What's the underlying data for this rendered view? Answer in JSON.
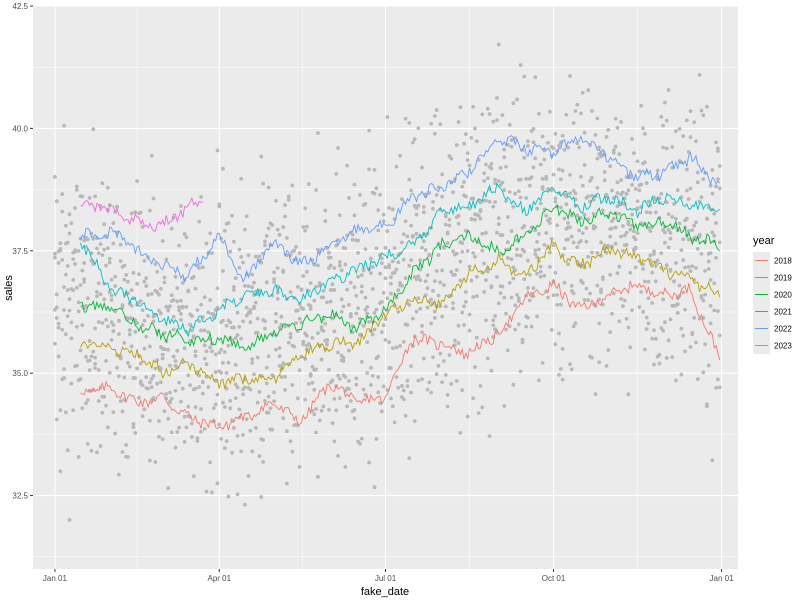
{
  "chart_data": {
    "type": "line",
    "title": "",
    "xlabel": "fake_date",
    "ylabel": "sales",
    "xlim": [
      "2021-12-20",
      "2023-01-10"
    ],
    "ylim": [
      31.0,
      42.5
    ],
    "grid": true,
    "legend_position": "right",
    "x_ticks": [
      {
        "value": "2022-01-01",
        "label": "Jan 01"
      },
      {
        "value": "2022-04-01",
        "label": "Apr 01"
      },
      {
        "value": "2022-07-01",
        "label": "Jul 01"
      },
      {
        "value": "2022-10-01",
        "label": "Oct 01"
      },
      {
        "value": "2023-01-01",
        "label": "Jan 01"
      }
    ],
    "y_ticks": [
      {
        "value": 32.5,
        "label": "32.5"
      },
      {
        "value": 35.0,
        "label": "35.0"
      },
      {
        "value": 37.5,
        "label": "37.5"
      },
      {
        "value": 40.0,
        "label": "40.0"
      },
      {
        "value": 42.5,
        "label": "42.5"
      }
    ],
    "legend": {
      "title": "year",
      "entries": [
        "2018",
        "2019",
        "2020",
        "2021",
        "2022",
        "2023"
      ]
    },
    "colors": {
      "2018": "#F8766D",
      "2019": "#B79F00",
      "2020": "#00BA38",
      "2021": "#00BFC4",
      "2022": "#619CFF",
      "2023": "#F564E3",
      "points": "#b8b8b8",
      "panel": "#ebebeb",
      "grid": "#ffffff"
    },
    "series": [
      {
        "name": "2018",
        "x": [
          "2022-01-15",
          "2022-02-01",
          "2022-02-15",
          "2022-03-01",
          "2022-03-15",
          "2022-04-01",
          "2022-04-15",
          "2022-05-01",
          "2022-05-15",
          "2022-06-01",
          "2022-06-15",
          "2022-07-01",
          "2022-07-15",
          "2022-08-01",
          "2022-08-15",
          "2022-09-01",
          "2022-09-15",
          "2022-10-01",
          "2022-10-15",
          "2022-11-01",
          "2022-11-15",
          "2022-12-01",
          "2022-12-15",
          "2022-12-31"
        ],
        "y": [
          34.6,
          34.7,
          34.4,
          34.5,
          34.1,
          33.9,
          34.1,
          34.4,
          34.0,
          34.8,
          34.4,
          34.5,
          35.7,
          35.6,
          35.4,
          35.8,
          36.5,
          36.8,
          36.3,
          36.6,
          36.8,
          36.6,
          36.7,
          35.3
        ]
      },
      {
        "name": "2019",
        "x": [
          "2022-01-15",
          "2022-02-01",
          "2022-02-15",
          "2022-03-01",
          "2022-03-15",
          "2022-04-01",
          "2022-04-15",
          "2022-05-01",
          "2022-05-15",
          "2022-06-01",
          "2022-06-15",
          "2022-07-01",
          "2022-07-15",
          "2022-08-01",
          "2022-08-15",
          "2022-09-01",
          "2022-09-15",
          "2022-10-01",
          "2022-10-15",
          "2022-11-01",
          "2022-11-15",
          "2022-12-01",
          "2022-12-15",
          "2022-12-31"
        ],
        "y": [
          35.6,
          35.5,
          35.4,
          35.0,
          35.2,
          34.8,
          34.9,
          34.9,
          35.4,
          35.6,
          35.6,
          36.2,
          36.5,
          36.4,
          37.0,
          37.3,
          37.0,
          37.6,
          37.2,
          37.5,
          37.4,
          37.1,
          36.9,
          36.6
        ]
      },
      {
        "name": "2020",
        "x": [
          "2022-01-15",
          "2022-02-01",
          "2022-02-15",
          "2022-03-01",
          "2022-03-15",
          "2022-04-01",
          "2022-04-15",
          "2022-05-01",
          "2022-05-15",
          "2022-06-01",
          "2022-06-15",
          "2022-07-01",
          "2022-07-15",
          "2022-08-01",
          "2022-08-15",
          "2022-09-01",
          "2022-09-15",
          "2022-10-01",
          "2022-10-15",
          "2022-11-01",
          "2022-11-15",
          "2022-12-01",
          "2022-12-15",
          "2022-12-31"
        ],
        "y": [
          36.4,
          36.3,
          36.0,
          35.8,
          35.7,
          35.7,
          35.5,
          35.8,
          36.0,
          36.2,
          35.9,
          36.3,
          37.0,
          37.6,
          37.8,
          37.5,
          37.8,
          38.4,
          38.1,
          38.3,
          38.0,
          38.1,
          37.8,
          37.6
        ]
      },
      {
        "name": "2021",
        "x": [
          "2022-01-15",
          "2022-02-01",
          "2022-02-15",
          "2022-03-01",
          "2022-03-15",
          "2022-04-01",
          "2022-04-15",
          "2022-05-01",
          "2022-05-15",
          "2022-06-01",
          "2022-06-15",
          "2022-07-01",
          "2022-07-15",
          "2022-08-01",
          "2022-08-15",
          "2022-09-01",
          "2022-09-15",
          "2022-10-01",
          "2022-10-15",
          "2022-11-01",
          "2022-11-15",
          "2022-12-01",
          "2022-12-15",
          "2022-12-31"
        ],
        "y": [
          37.7,
          36.7,
          36.5,
          36.1,
          35.9,
          36.3,
          36.6,
          36.7,
          36.5,
          36.9,
          37.1,
          37.4,
          37.6,
          38.3,
          38.4,
          38.8,
          38.3,
          38.8,
          38.4,
          38.6,
          38.3,
          38.6,
          38.4,
          38.4
        ]
      },
      {
        "name": "2022",
        "x": [
          "2022-01-15",
          "2022-02-01",
          "2022-02-15",
          "2022-03-01",
          "2022-03-15",
          "2022-04-01",
          "2022-04-15",
          "2022-05-01",
          "2022-05-15",
          "2022-06-01",
          "2022-06-15",
          "2022-07-01",
          "2022-07-15",
          "2022-08-01",
          "2022-08-15",
          "2022-09-01",
          "2022-09-15",
          "2022-10-01",
          "2022-10-15",
          "2022-11-01",
          "2022-11-15",
          "2022-12-01",
          "2022-12-15",
          "2022-12-31"
        ],
        "y": [
          37.8,
          37.9,
          37.5,
          37.2,
          37.0,
          37.8,
          36.9,
          37.7,
          37.2,
          37.6,
          37.9,
          38.0,
          38.6,
          38.8,
          39.1,
          39.8,
          39.6,
          39.5,
          39.8,
          39.4,
          39.0,
          39.1,
          39.4,
          38.8
        ]
      },
      {
        "name": "2023",
        "x": [
          "2022-01-15",
          "2022-01-25",
          "2022-02-05",
          "2022-02-15",
          "2022-02-25",
          "2022-03-05",
          "2022-03-15",
          "2022-03-23"
        ],
        "y": [
          38.5,
          38.4,
          38.3,
          38.1,
          38.0,
          38.1,
          38.4,
          38.5
        ]
      }
    ]
  }
}
